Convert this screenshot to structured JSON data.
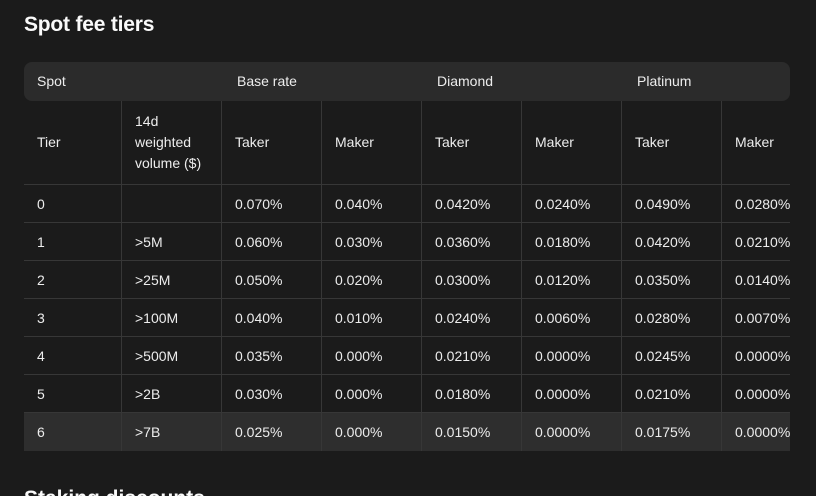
{
  "page": {
    "title": "Spot fee tiers",
    "next_section_title": "Staking discounts"
  },
  "colors": {
    "page_bg": "#1b1b1b",
    "group_header_bg": "#2b2b2b",
    "row_highlight_bg": "#2e2e2e",
    "border": "#373737",
    "text": "#ededed",
    "title_text": "#fafafa"
  },
  "fee_table": {
    "group_headers": [
      {
        "label": "Spot"
      },
      {
        "label": "Base rate"
      },
      {
        "label": "Diamond"
      },
      {
        "label": "Platinum"
      }
    ],
    "column_headers": [
      "Tier",
      "14d weighted volume ($)",
      "Taker",
      "Maker",
      "Taker",
      "Maker",
      "Taker",
      "Maker"
    ],
    "rows": [
      [
        "0",
        "",
        "0.070%",
        "0.040%",
        "0.0420%",
        "0.0240%",
        "0.0490%",
        "0.0280%"
      ],
      [
        "1",
        ">5M",
        "0.060%",
        "0.030%",
        "0.0360%",
        "0.0180%",
        "0.0420%",
        "0.0210%"
      ],
      [
        "2",
        ">25M",
        "0.050%",
        "0.020%",
        "0.0300%",
        "0.0120%",
        "0.0350%",
        "0.0140%"
      ],
      [
        "3",
        ">100M",
        "0.040%",
        "0.010%",
        "0.0240%",
        "0.0060%",
        "0.0280%",
        "0.0070%"
      ],
      [
        "4",
        ">500M",
        "0.035%",
        "0.000%",
        "0.0210%",
        "0.0000%",
        "0.0245%",
        "0.0000%"
      ],
      [
        "5",
        ">2B",
        "0.030%",
        "0.000%",
        "0.0180%",
        "0.0000%",
        "0.0210%",
        "0.0000%"
      ],
      [
        "6",
        ">7B",
        "0.025%",
        "0.000%",
        "0.0150%",
        "0.0000%",
        "0.0175%",
        "0.0000%"
      ]
    ],
    "highlighted_row": 6
  }
}
